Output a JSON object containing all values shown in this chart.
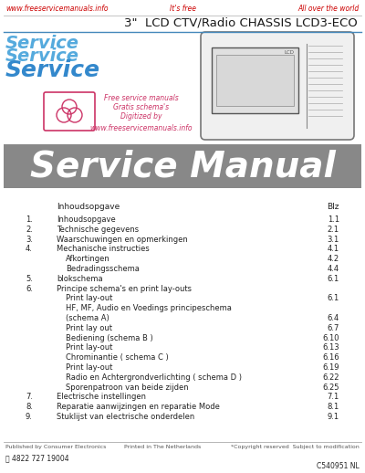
{
  "bg_color": "#ffffff",
  "header_url_left": "www.freeservicemanuals.info",
  "header_center": "It's free",
  "header_url_right": "All over the world",
  "header_text_color": "#cc0000",
  "title_line": "3\"  LCD CTV/Radio CHASSIS LCD3-ECO",
  "title_color": "#1a1a1a",
  "service_texts": [
    "Service",
    "Service",
    "Service"
  ],
  "service_colors": [
    "#55aadd",
    "#55aadd",
    "#3388cc"
  ],
  "watermark_text1": "Free service manuals",
  "watermark_text2": "Gratis schema's",
  "watermark_text3": "Digitized by",
  "watermark_url": "www.freeservicemanuals.info",
  "watermark_color": "#cc3366",
  "banner_bg": "#888888",
  "banner_text": "Service Manual",
  "banner_text_color": "#ffffff",
  "toc_header_left": "Inhoudsopgave",
  "toc_header_right": "Blz",
  "toc_items": [
    {
      "num": "1.",
      "text": "Inhoudsopgave",
      "page": "1.1"
    },
    {
      "num": "2.",
      "text": "Technische gegevens",
      "page": "2.1"
    },
    {
      "num": "3.",
      "text": "Waarschuwingen en opmerkingen",
      "page": "3.1"
    },
    {
      "num": "4.",
      "text": "Mechanische instructies",
      "page": "4.1"
    },
    {
      "num": "",
      "text": "Afkortingen",
      "page": "4.2"
    },
    {
      "num": "",
      "text": "Bedradingsschema",
      "page": "4.4"
    },
    {
      "num": "5.",
      "text": "blokschema",
      "page": "6.1"
    },
    {
      "num": "6.",
      "text": "Principe schema's en print lay-outs",
      "page": ""
    },
    {
      "num": "",
      "text": "Print lay-out",
      "page": "6.1"
    },
    {
      "num": "",
      "text": "HF, MF, Audio en Voedings principeschema",
      "page": ""
    },
    {
      "num": "",
      "text": "(schema A)",
      "page": "6.4"
    },
    {
      "num": "",
      "text": "Print lay out",
      "page": "6.7"
    },
    {
      "num": "",
      "text": "Bediening (schema B )",
      "page": "6.10"
    },
    {
      "num": "",
      "text": "Print lay-out",
      "page": "6.13"
    },
    {
      "num": "",
      "text": "Chrominantie ( schema C )",
      "page": "6.16"
    },
    {
      "num": "",
      "text": "Print lay-out",
      "page": "6.19"
    },
    {
      "num": "",
      "text": "Radio en Achtergrondverlichting ( schema D )",
      "page": "6.22"
    },
    {
      "num": "",
      "text": "Sporenpatroon van beide zijden",
      "page": "6.25"
    },
    {
      "num": "7.",
      "text": "Electrische instellingen",
      "page": "7.1"
    },
    {
      "num": "8.",
      "text": "Reparatie aanwijzingen en reparatie Mode",
      "page": "8.1"
    },
    {
      "num": "9.",
      "text": "Stuklijst van electrische onderdelen",
      "page": "9.1"
    }
  ],
  "footer_left": "Published by Consumer Electronics",
  "footer_mid": "Printed in The Netherlands",
  "footer_copy": "*Copyright reserved  Subject to modification",
  "footer_logo": "Ⓟ 4822 727 19004",
  "footer_ref": "C540951 NL"
}
